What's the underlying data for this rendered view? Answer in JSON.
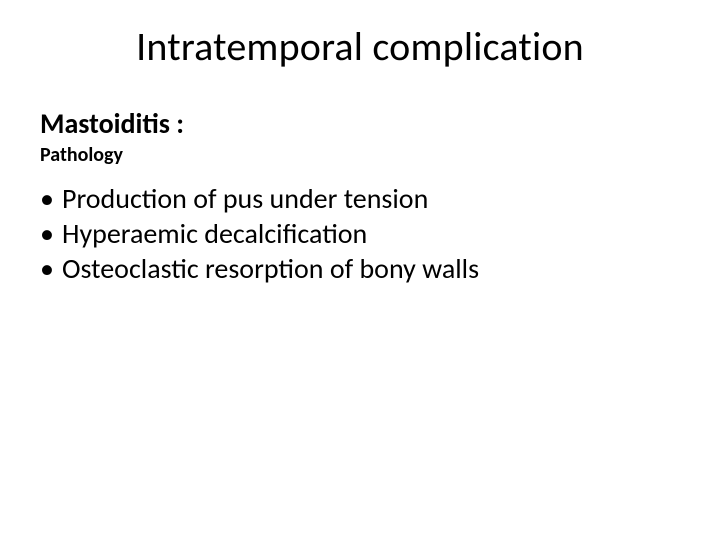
{
  "colors": {
    "background": "#ffffff",
    "text": "#000000"
  },
  "typography": {
    "title_fontsize": 40,
    "title_weight": 400,
    "subhead_fontsize": 28,
    "subhead_weight": 700,
    "subsub_fontsize": 20,
    "subsub_weight": 700,
    "bullet_fontsize": 28,
    "bullet_weight": 400,
    "font_family": "Calibri"
  },
  "slide": {
    "title": "Intratemporal complication",
    "subhead": "Mastoiditis :",
    "subsub": "Pathology",
    "bullet_char": "•",
    "bullets": [
      "Production of pus under tension",
      "Hyperaemic decalcification",
      "Osteoclastic resorption of bony walls"
    ]
  }
}
